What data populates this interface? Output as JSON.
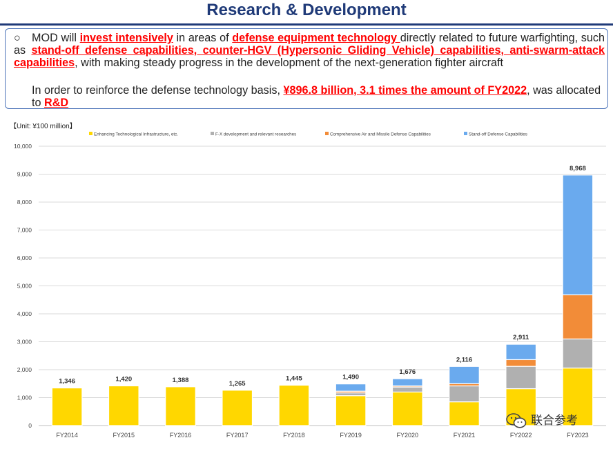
{
  "title": "Research & Development",
  "summary": {
    "bullet_symbol": "○",
    "line1": [
      {
        "text": "MOD will ",
        "hl": false
      },
      {
        "text": "invest intensively",
        "hl": true
      },
      {
        "text": " in areas of ",
        "hl": false
      },
      {
        "text": "defense equipment technology ",
        "hl": true
      },
      {
        "text": "directly related to future warfighting, such as ",
        "hl": false
      },
      {
        "text": "stand-off defense capabilities, counter-HGV (Hypersonic Gliding Vehicle) capabilities, anti-swarm-attack capabilities",
        "hl": true
      },
      {
        "text": ", with making steady progress in the development of the next-generation fighter aircraft",
        "hl": false
      }
    ],
    "line2": [
      {
        "text": "In order to reinforce the defense technology basis, ",
        "hl": false
      },
      {
        "text": "¥896.8 billion, 3.1 times the amount of FY2022",
        "hl": true
      },
      {
        "text": ", was allocated to ",
        "hl": false
      },
      {
        "text": "R&D",
        "hl": true
      }
    ]
  },
  "unit_label": "【Unit: ¥100 million】",
  "watermark": "联合参考",
  "chart_data": {
    "type": "bar",
    "stacked": true,
    "categories": [
      "FY2014",
      "FY2015",
      "FY2016",
      "FY2017",
      "FY2018",
      "FY2019",
      "FY2020",
      "FY2021",
      "FY2022",
      "FY2023"
    ],
    "series": [
      {
        "name": "Enhancing Technological Infrastructure, etc.",
        "color": "#ffd700",
        "values": [
          1346,
          1420,
          1388,
          1265,
          1445,
          1070,
          1200,
          850,
          1320,
          2060
        ]
      },
      {
        "name": "F-X development and relevant researches",
        "color": "#b0b0b0",
        "values": [
          0,
          0,
          0,
          0,
          0,
          100,
          180,
          570,
          800,
          1040
        ]
      },
      {
        "name": "Comprehensive Air and Missile Defense Capabilities",
        "color": "#f28c38",
        "values": [
          0,
          0,
          0,
          0,
          0,
          60,
          40,
          80,
          240,
          1580
        ]
      },
      {
        "name": "Stand-off Defense Capabilities",
        "color": "#6aaaee",
        "values": [
          0,
          0,
          0,
          0,
          0,
          260,
          256,
          616,
          551,
          4288
        ]
      }
    ],
    "totals": [
      1346,
      1420,
      1388,
      1265,
      1445,
      1490,
      1676,
      2116,
      2911,
      8968
    ],
    "total_labels": [
      "1,346",
      "1,420",
      "1,388",
      "1,265",
      "1,445",
      "1,490",
      "1,676",
      "2,116",
      "2,911",
      "8,968"
    ],
    "ylim": [
      0,
      10000
    ],
    "yticks": [
      0,
      1000,
      2000,
      3000,
      4000,
      5000,
      6000,
      7000,
      8000,
      9000,
      10000
    ],
    "ytick_labels": [
      "0",
      "1,000",
      "2,000",
      "3,000",
      "4,000",
      "5,000",
      "6,000",
      "7,000",
      "8,000",
      "9,000",
      "10,000"
    ],
    "grid": true,
    "legend_position": "top"
  }
}
